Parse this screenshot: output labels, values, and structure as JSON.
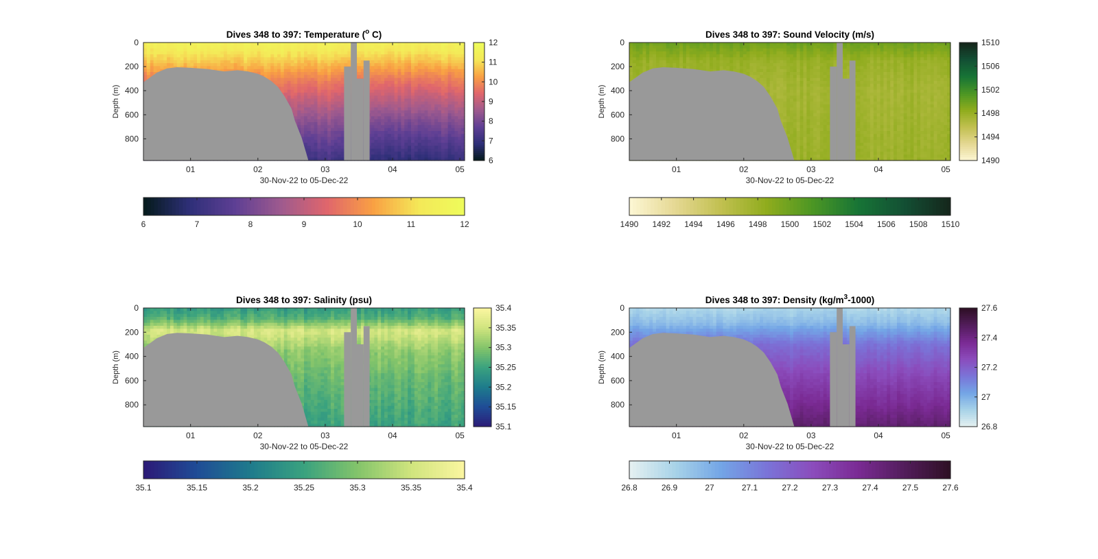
{
  "figure": {
    "background": "#ffffff",
    "mask_color": "#999999"
  },
  "chart_data": [
    {
      "type": "heatmap",
      "id": "temperature",
      "title": "Dives 348 to 397: Temperature (",
      "title_sup": "o",
      "title_tail": " C)",
      "xlabel": "30-Nov-22 to 05-Dec-22",
      "ylabel": "Depth (m)",
      "xlim": [
        30.3,
        35.07
      ],
      "ylim": [
        0,
        980
      ],
      "x_ticks": [
        {
          "v": 31,
          "label": "01"
        },
        {
          "v": 32,
          "label": "02"
        },
        {
          "v": 33,
          "label": "03"
        },
        {
          "v": 34,
          "label": "04"
        },
        {
          "v": 35,
          "label": "05"
        }
      ],
      "y_ticks": [
        {
          "v": 0,
          "label": "0"
        },
        {
          "v": 200,
          "label": "200"
        },
        {
          "v": 400,
          "label": "400"
        },
        {
          "v": 600,
          "label": "600"
        },
        {
          "v": 800,
          "label": "800"
        }
      ],
      "colorbar": {
        "range": [
          6,
          12
        ],
        "ticks": [
          "6",
          "7",
          "8",
          "9",
          "10",
          "11",
          "12"
        ],
        "colors": [
          "#041a1a",
          "#2e2f78",
          "#5e3f94",
          "#9e5a8e",
          "#e0666c",
          "#f9a043",
          "#f4e858",
          "#eefc5b"
        ]
      },
      "profile": [
        {
          "d": 0,
          "v": 11.5
        },
        {
          "d": 60,
          "v": 11.3
        },
        {
          "d": 150,
          "v": 10.8
        },
        {
          "d": 300,
          "v": 9.9
        },
        {
          "d": 500,
          "v": 9.0
        },
        {
          "d": 700,
          "v": 8.2
        },
        {
          "d": 980,
          "v": 7.2
        }
      ],
      "noise": 0.35
    },
    {
      "type": "heatmap",
      "id": "sound-velocity",
      "title": "Dives 348 to 397: Sound Velocity (m/s)",
      "xlabel": "30-Nov-22 to 05-Dec-22",
      "ylabel": "Depth (m)",
      "xlim": [
        30.3,
        35.07
      ],
      "ylim": [
        0,
        980
      ],
      "x_ticks": [
        {
          "v": 31,
          "label": "01"
        },
        {
          "v": 32,
          "label": "02"
        },
        {
          "v": 33,
          "label": "03"
        },
        {
          "v": 34,
          "label": "04"
        },
        {
          "v": 35,
          "label": "05"
        }
      ],
      "y_ticks": [
        {
          "v": 0,
          "label": "0"
        },
        {
          "v": 200,
          "label": "200"
        },
        {
          "v": 400,
          "label": "400"
        },
        {
          "v": 600,
          "label": "600"
        },
        {
          "v": 800,
          "label": "800"
        }
      ],
      "colorbar": {
        "range": [
          1490,
          1510
        ],
        "ticks": [
          "1490",
          "1492",
          "1494",
          "1496",
          "1498",
          "1500",
          "1502",
          "1504",
          "1506",
          "1508",
          "1510"
        ],
        "colors": [
          "#fdf7d5",
          "#e5d893",
          "#c1c050",
          "#8fac1d",
          "#4b9624",
          "#177436",
          "#134f34",
          "#15261b"
        ]
      },
      "profile": [
        {
          "d": 0,
          "v": 1500.0
        },
        {
          "d": 150,
          "v": 1498.0
        },
        {
          "d": 400,
          "v": 1497.3
        },
        {
          "d": 700,
          "v": 1497.6
        },
        {
          "d": 980,
          "v": 1497.8
        }
      ],
      "noise": 0.9
    },
    {
      "type": "heatmap",
      "id": "salinity",
      "title": "Dives 348 to 397: Salinity (psu)",
      "xlabel": "30-Nov-22 to 05-Dec-22",
      "ylabel": "Depth (m)",
      "xlim": [
        30.3,
        35.07
      ],
      "ylim": [
        0,
        980
      ],
      "x_ticks": [
        {
          "v": 31,
          "label": "01"
        },
        {
          "v": 32,
          "label": "02"
        },
        {
          "v": 33,
          "label": "03"
        },
        {
          "v": 34,
          "label": "04"
        },
        {
          "v": 35,
          "label": "05"
        }
      ],
      "y_ticks": [
        {
          "v": 0,
          "label": "0"
        },
        {
          "v": 200,
          "label": "200"
        },
        {
          "v": 400,
          "label": "400"
        },
        {
          "v": 600,
          "label": "600"
        },
        {
          "v": 800,
          "label": "800"
        }
      ],
      "colorbar": {
        "range": [
          35.1,
          35.4
        ],
        "ticks": [
          "35.1",
          "35.15",
          "35.2",
          "35.25",
          "35.3",
          "35.35",
          "35.4"
        ],
        "colors": [
          "#2c1a77",
          "#1f4c96",
          "#1e7b8c",
          "#3aa27f",
          "#83c46a",
          "#d0e47e",
          "#fbf6a0"
        ]
      },
      "profile": [
        {
          "d": 0,
          "v": 35.24
        },
        {
          "d": 90,
          "v": 35.27
        },
        {
          "d": 190,
          "v": 35.36
        },
        {
          "d": 350,
          "v": 35.31
        },
        {
          "d": 600,
          "v": 35.28
        },
        {
          "d": 980,
          "v": 35.25
        }
      ],
      "noise": 0.03
    },
    {
      "type": "heatmap",
      "id": "density",
      "title": "Dives 348 to 397: Density (kg/m",
      "title_sup": "3",
      "title_tail": "-1000)",
      "xlabel": "30-Nov-22 to 05-Dec-22",
      "ylabel": "Depth (m)",
      "xlim": [
        30.3,
        35.07
      ],
      "ylim": [
        0,
        980
      ],
      "x_ticks": [
        {
          "v": 31,
          "label": "01"
        },
        {
          "v": 32,
          "label": "02"
        },
        {
          "v": 33,
          "label": "03"
        },
        {
          "v": 34,
          "label": "04"
        },
        {
          "v": 35,
          "label": "05"
        }
      ],
      "y_ticks": [
        {
          "v": 0,
          "label": "0"
        },
        {
          "v": 200,
          "label": "200"
        },
        {
          "v": 400,
          "label": "400"
        },
        {
          "v": 600,
          "label": "600"
        },
        {
          "v": 800,
          "label": "800"
        }
      ],
      "colorbar": {
        "range": [
          26.8,
          27.6
        ],
        "ticks": [
          "26.8",
          "26.9",
          "27",
          "27.1",
          "27.2",
          "27.3",
          "27.4",
          "27.5",
          "27.6"
        ],
        "colors": [
          "#e6f1f1",
          "#a8d3e8",
          "#73a5e6",
          "#7a74d8",
          "#8b4cbc",
          "#7a2a93",
          "#521d5b",
          "#2e0f24"
        ]
      },
      "profile": [
        {
          "d": 0,
          "v": 26.9
        },
        {
          "d": 120,
          "v": 26.97
        },
        {
          "d": 300,
          "v": 27.15
        },
        {
          "d": 550,
          "v": 27.27
        },
        {
          "d": 800,
          "v": 27.37
        },
        {
          "d": 980,
          "v": 27.45
        }
      ],
      "noise": 0.04
    }
  ],
  "seabed_mask": [
    {
      "x": 30.3,
      "d": 330
    },
    {
      "x": 30.4,
      "d": 290
    },
    {
      "x": 30.5,
      "d": 250
    },
    {
      "x": 30.65,
      "d": 215
    },
    {
      "x": 30.8,
      "d": 205
    },
    {
      "x": 31.0,
      "d": 210
    },
    {
      "x": 31.25,
      "d": 220
    },
    {
      "x": 31.5,
      "d": 240
    },
    {
      "x": 31.7,
      "d": 230
    },
    {
      "x": 31.85,
      "d": 240
    },
    {
      "x": 32.0,
      "d": 260
    },
    {
      "x": 32.1,
      "d": 285
    },
    {
      "x": 32.2,
      "d": 320
    },
    {
      "x": 32.3,
      "d": 370
    },
    {
      "x": 32.4,
      "d": 450
    },
    {
      "x": 32.5,
      "d": 550
    },
    {
      "x": 32.55,
      "d": 650
    },
    {
      "x": 32.65,
      "d": 790
    },
    {
      "x": 32.75,
      "d": 980
    }
  ],
  "instrument_gaps": [
    {
      "x0": 33.28,
      "x1": 33.38,
      "d_top": 200
    },
    {
      "x0": 33.38,
      "x1": 33.47,
      "d_top": 0
    },
    {
      "x0": 33.47,
      "x1": 33.57,
      "d_top": 300
    },
    {
      "x0": 33.57,
      "x1": 33.66,
      "d_top": 150
    }
  ]
}
